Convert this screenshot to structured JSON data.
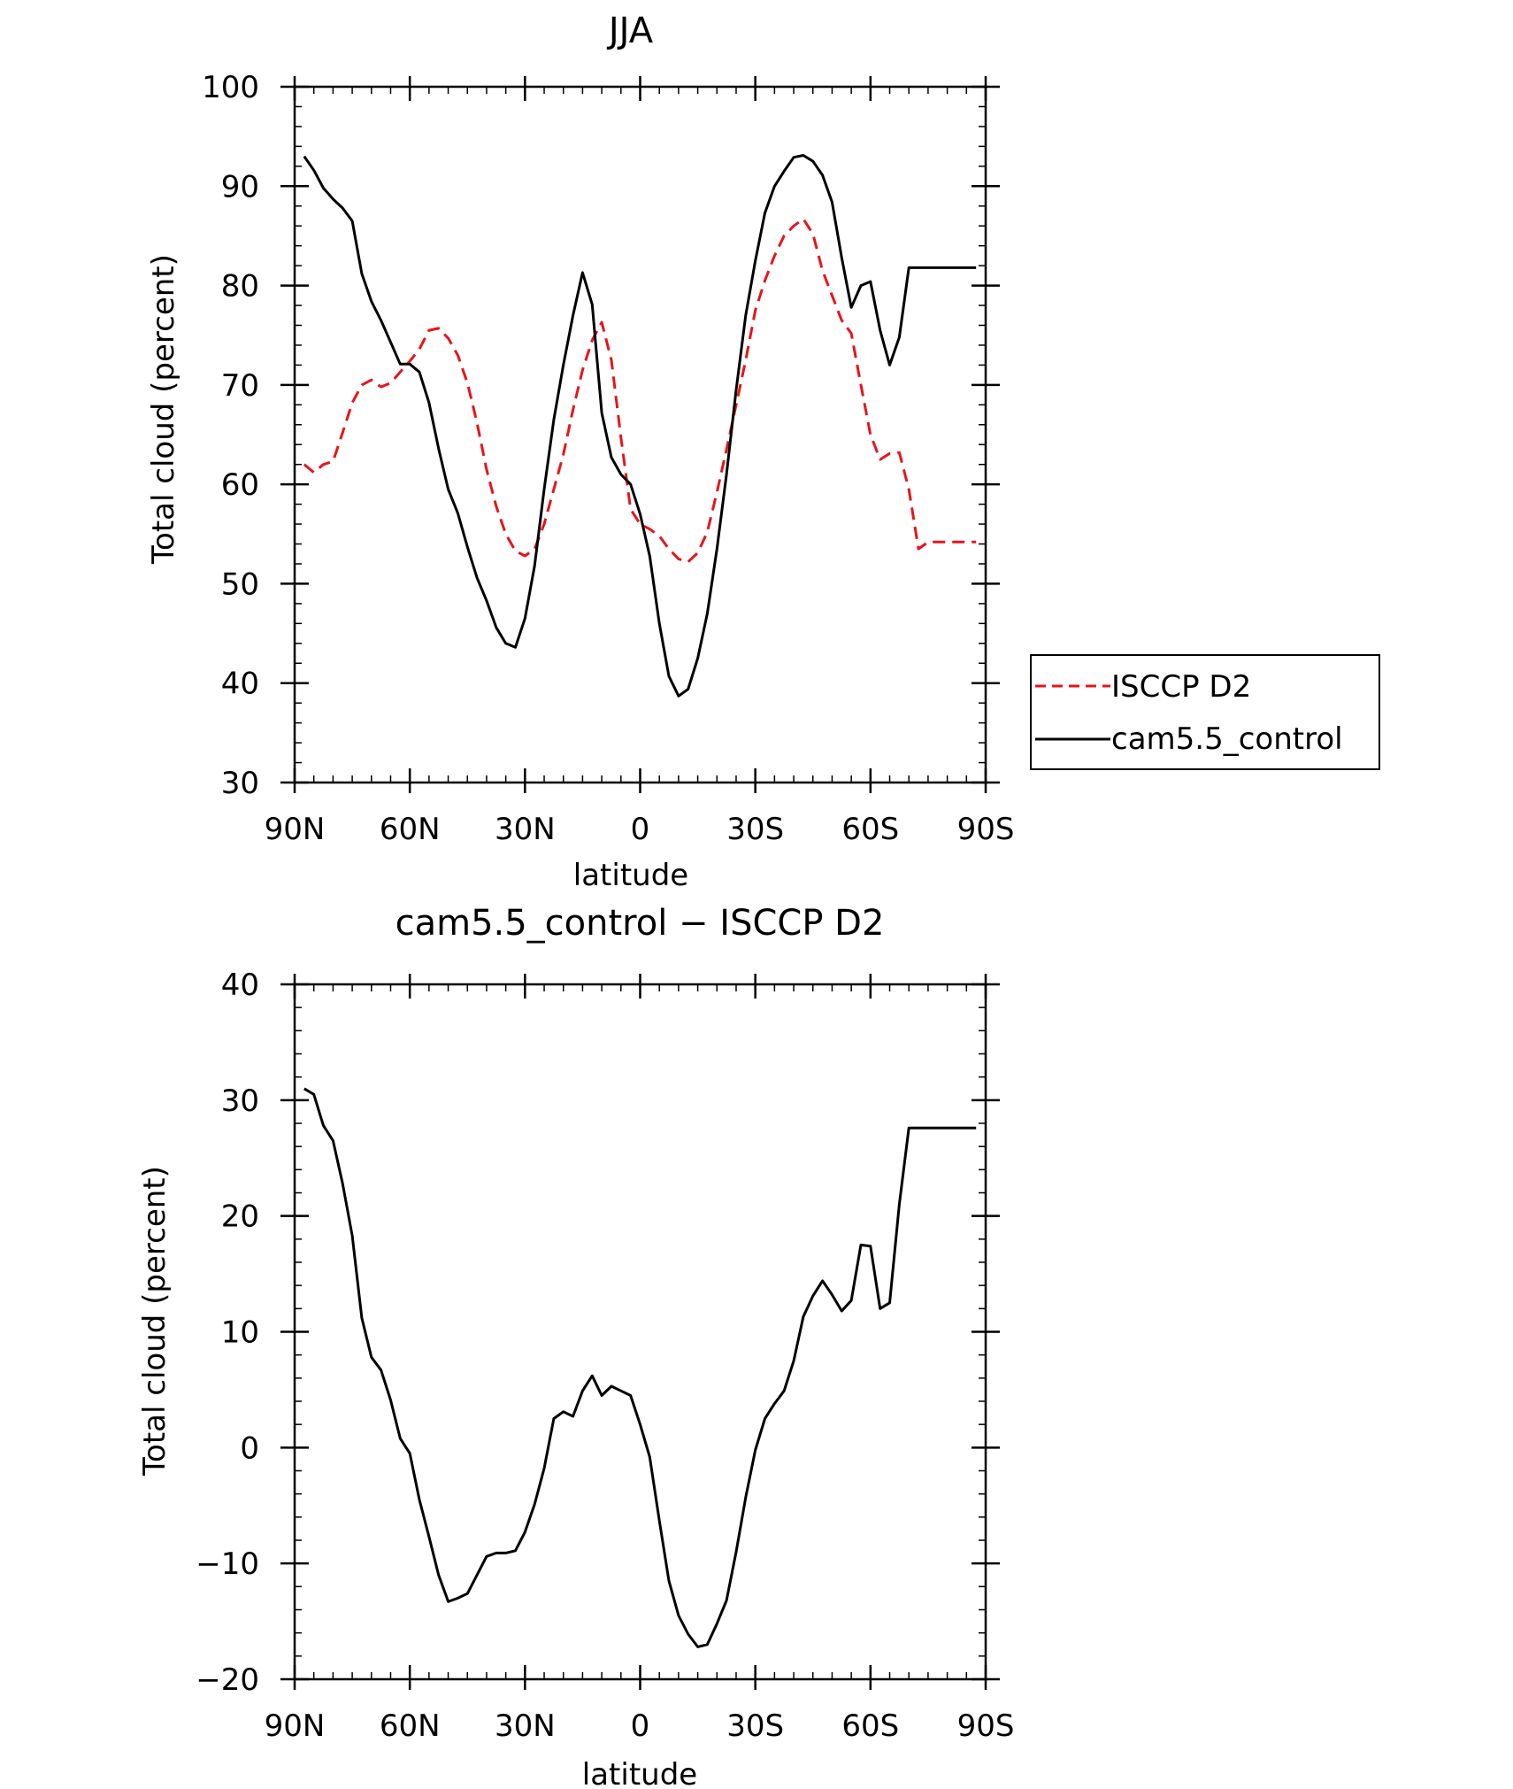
{
  "chart_data": [
    {
      "type": "line",
      "title": "JJA",
      "xlabel": "latitude",
      "ylabel": "Total cloud (percent)",
      "xlim": [
        90,
        -90
      ],
      "ylim": [
        30,
        100
      ],
      "xticks": [
        90,
        60,
        30,
        0,
        -30,
        -60,
        -90
      ],
      "xtick_labels": [
        "90N",
        "60N",
        "30N",
        "0",
        "30S",
        "60S",
        "90S"
      ],
      "yticks": [
        30,
        40,
        50,
        60,
        70,
        80,
        90,
        100
      ],
      "ytick_labels": [
        "30",
        "40",
        "50",
        "60",
        "70",
        "80",
        "90",
        "100"
      ],
      "legend_position": "right",
      "series": [
        {
          "name": "ISCCP D2",
          "color": "#e8141b",
          "dash": "dashed",
          "x": [
            87.5,
            85,
            82.5,
            80,
            77.5,
            75,
            72.5,
            70,
            67.5,
            65,
            62.5,
            60,
            57.5,
            55,
            52.5,
            50,
            47.5,
            45,
            42.5,
            40,
            37.5,
            35,
            32.5,
            30,
            27.5,
            25,
            22.5,
            20,
            17.5,
            15,
            12.5,
            10,
            7.5,
            5,
            2.5,
            0,
            -2.5,
            -5,
            -7.5,
            -10,
            -12.5,
            -15,
            -17.5,
            -20,
            -22.5,
            -25,
            -27.5,
            -30,
            -32.5,
            -35,
            -37.5,
            -40,
            -42.5,
            -45,
            -47.5,
            -50,
            -52.5,
            -55,
            -57.5,
            -60,
            -62.5,
            -65,
            -67.5,
            -70,
            -72.5,
            -75,
            -77.5,
            -80,
            -82.5,
            -85,
            -87.5
          ],
          "values": [
            62,
            61.2,
            62,
            62.3,
            65.2,
            68.2,
            70,
            70.5,
            69.8,
            70.2,
            71.3,
            72.4,
            73.6,
            75.5,
            75.7,
            74.7,
            73,
            70.2,
            66.2,
            61.5,
            57.8,
            55,
            53.3,
            52.8,
            53.5,
            56,
            59.5,
            63,
            67.5,
            71.5,
            74.5,
            76.3,
            72.5,
            64.7,
            57.5,
            56,
            55.5,
            54.8,
            53.5,
            52.5,
            52.2,
            53.1,
            55.2,
            59.2,
            63.5,
            68,
            72.5,
            77.5,
            80.5,
            83,
            85,
            86,
            86.7,
            85.2,
            81.5,
            79,
            76.5,
            75.2,
            70,
            65,
            62.5,
            63.1,
            63.2,
            59.5,
            53.5,
            54.2,
            54.2,
            54.2,
            54.2,
            54.2,
            54.2
          ]
        },
        {
          "name": "cam5.5_control",
          "color": "#000000",
          "dash": "solid",
          "x": [
            87.5,
            85,
            82.5,
            80,
            77.5,
            75,
            72.5,
            70,
            67.5,
            65,
            62.5,
            60,
            57.5,
            55,
            52.5,
            50,
            47.5,
            45,
            42.5,
            40,
            37.5,
            35,
            32.5,
            30,
            27.5,
            25,
            22.5,
            20,
            17.5,
            15,
            12.5,
            10,
            7.5,
            5,
            2.5,
            0,
            -2.5,
            -5,
            -7.5,
            -10,
            -12.5,
            -15,
            -17.5,
            -20,
            -22.5,
            -25,
            -27.5,
            -30,
            -32.5,
            -35,
            -37.5,
            -40,
            -42.5,
            -45,
            -47.5,
            -50,
            -52.5,
            -55,
            -57.5,
            -60,
            -62.5,
            -65,
            -67.5,
            -70,
            -72.5,
            -75,
            -77.5,
            -80,
            -82.5,
            -85,
            -87.5
          ],
          "values": [
            93,
            91.6,
            89.8,
            88.7,
            87.8,
            86.5,
            81.2,
            78.4,
            76.5,
            74.3,
            72.1,
            72.1,
            71.3,
            68.2,
            63.6,
            59.5,
            57.1,
            53.7,
            50.6,
            48.3,
            45.6,
            44,
            43.6,
            46.5,
            51.8,
            59.5,
            66.5,
            72,
            77,
            81.3,
            78.1,
            67.2,
            62.7,
            61,
            60,
            57,
            52.8,
            46,
            40.7,
            38.7,
            39.4,
            42.5,
            47,
            53.5,
            61,
            69.5,
            77,
            82.5,
            87.3,
            90,
            91.5,
            92.9,
            93.1,
            92.5,
            91.1,
            88.4,
            82.8,
            77.8,
            80,
            80.4,
            75.5,
            72,
            74.8,
            81.8,
            81.8,
            81.8,
            81.8,
            81.8,
            81.8,
            81.8,
            81.8
          ]
        }
      ]
    },
    {
      "type": "line",
      "title": "cam5.5_control − ISCCP D2",
      "xlabel": "latitude",
      "ylabel": "Total cloud (percent)",
      "xlim": [
        90,
        -90
      ],
      "ylim": [
        -20,
        40
      ],
      "xticks": [
        90,
        60,
        30,
        0,
        -30,
        -60,
        -90
      ],
      "xtick_labels": [
        "90N",
        "60N",
        "30N",
        "0",
        "30S",
        "60S",
        "90S"
      ],
      "yticks": [
        -20,
        -10,
        0,
        10,
        20,
        30,
        40
      ],
      "ytick_labels": [
        "−20",
        "−10",
        "0",
        "10",
        "20",
        "30",
        "40"
      ],
      "series": [
        {
          "color": "#000000",
          "dash": "solid",
          "x": [
            87.5,
            85,
            82.5,
            80,
            77.5,
            75,
            72.5,
            70,
            67.5,
            65,
            62.5,
            60,
            57.5,
            55,
            52.5,
            50,
            47.5,
            45,
            42.5,
            40,
            37.5,
            35,
            32.5,
            30,
            27.5,
            25,
            22.5,
            20,
            17.5,
            15,
            12.5,
            10,
            7.5,
            5,
            2.5,
            0,
            -2.5,
            -5,
            -7.5,
            -10,
            -12.5,
            -15,
            -17.5,
            -20,
            -22.5,
            -25,
            -27.5,
            -30,
            -32.5,
            -35,
            -37.5,
            -40,
            -42.5,
            -45,
            -47.5,
            -50,
            -52.5,
            -55,
            -57.5,
            -60,
            -62.5,
            -65,
            -67.5,
            -70,
            -72.5,
            -75,
            -77.5,
            -80,
            -82.5,
            -85,
            -87.5
          ],
          "values": [
            31,
            30.5,
            27.8,
            26.5,
            22.8,
            18.3,
            11.2,
            7.8,
            6.7,
            4.1,
            0.8,
            -0.5,
            -4.5,
            -7.7,
            -11,
            -13.3,
            -13,
            -12.6,
            -11,
            -9.4,
            -9.1,
            -9.1,
            -8.9,
            -7.3,
            -4.9,
            -1.8,
            2.5,
            3.1,
            2.7,
            4.9,
            6.2,
            4.5,
            5.3,
            4.9,
            4.5,
            2,
            -0.8,
            -6.3,
            -11.5,
            -14.5,
            -16.1,
            -17.2,
            -17,
            -15.2,
            -13.2,
            -9,
            -4.3,
            -0.2,
            2.5,
            3.8,
            4.9,
            7.5,
            11.3,
            13.1,
            14.4,
            13.2,
            11.8,
            12.7,
            17.5,
            17.4,
            12,
            12.5,
            21,
            27.6,
            27.6,
            27.6,
            27.6,
            27.6,
            27.6,
            27.6,
            27.6
          ]
        }
      ]
    }
  ]
}
